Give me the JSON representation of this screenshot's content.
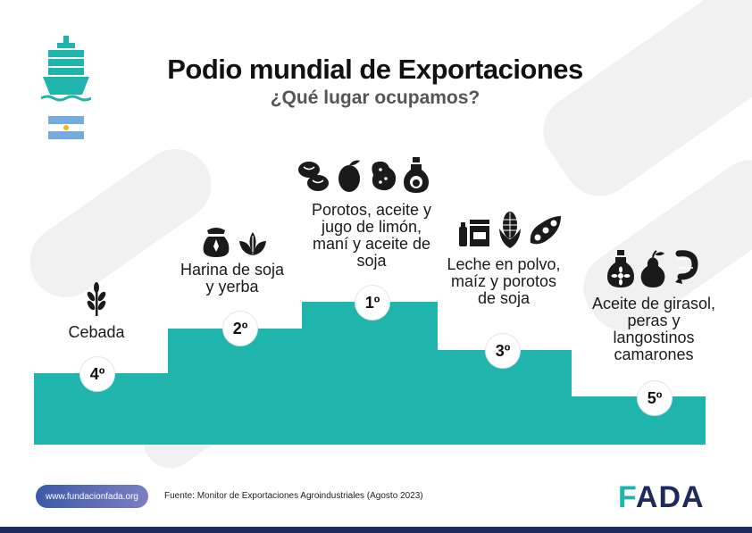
{
  "title": "Podio mundial de Exportaciones",
  "subtitle": "¿Qué lugar ocupamos?",
  "colors": {
    "podium": "#1fb5ad",
    "navy": "#1e2a5e",
    "flag_blue": "#74acdf",
    "sun": "#f6b40e"
  },
  "podium": [
    {
      "rank": "4º",
      "products": "Cebada",
      "icons": [
        "wheat-icon"
      ]
    },
    {
      "rank": "2º",
      "products": "Harina de soja y yerba",
      "icons": [
        "flour-sack-icon",
        "leaves-icon"
      ]
    },
    {
      "rank": "1º",
      "products": "Porotos, aceite y jugo de limón, maní y aceite de soja",
      "icons": [
        "beans-icon",
        "lemon-icon",
        "peanut-icon",
        "oil-bottle-icon"
      ]
    },
    {
      "rank": "3º",
      "products": "Leche en polvo, maíz y porotos de soja",
      "icons": [
        "milk-powder-icon",
        "corn-icon",
        "soybean-pod-icon"
      ]
    },
    {
      "rank": "5º",
      "products": "Aceite de girasol, peras y langostinos camarones",
      "icons": [
        "sunflower-oil-icon",
        "pear-icon",
        "shrimp-icon"
      ]
    }
  ],
  "footer": {
    "website": "www.fundacionfada.org",
    "source": "Fuente: Monitor de Exportaciones Agroindustriales (Agosto 2023)",
    "logo": "FADA"
  }
}
